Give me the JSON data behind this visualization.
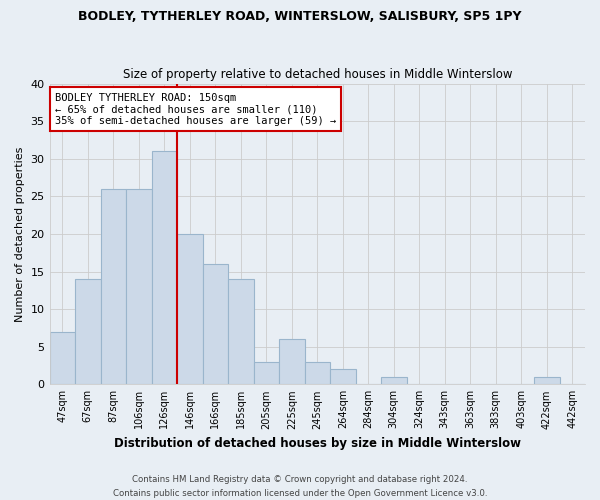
{
  "title": "BODLEY, TYTHERLEY ROAD, WINTERSLOW, SALISBURY, SP5 1PY",
  "subtitle": "Size of property relative to detached houses in Middle Winterslow",
  "xlabel": "Distribution of detached houses by size in Middle Winterslow",
  "ylabel": "Number of detached properties",
  "bin_labels": [
    "47sqm",
    "67sqm",
    "87sqm",
    "106sqm",
    "126sqm",
    "146sqm",
    "166sqm",
    "185sqm",
    "205sqm",
    "225sqm",
    "245sqm",
    "264sqm",
    "284sqm",
    "304sqm",
    "324sqm",
    "343sqm",
    "363sqm",
    "383sqm",
    "403sqm",
    "422sqm",
    "442sqm"
  ],
  "bar_heights": [
    7,
    14,
    26,
    26,
    31,
    20,
    16,
    14,
    3,
    6,
    3,
    2,
    0,
    1,
    0,
    0,
    0,
    0,
    0,
    1,
    0
  ],
  "bar_color": "#ccd9e8",
  "bar_edge_color": "#9ab5cc",
  "vline_position": 5.0,
  "vline_color": "#cc0000",
  "annotation_title": "BODLEY TYTHERLEY ROAD: 150sqm",
  "annotation_line1": "← 65% of detached houses are smaller (110)",
  "annotation_line2": "35% of semi-detached houses are larger (59) →",
  "annotation_box_facecolor": "#ffffff",
  "annotation_box_edgecolor": "#cc0000",
  "ylim": [
    0,
    40
  ],
  "yticks": [
    0,
    5,
    10,
    15,
    20,
    25,
    30,
    35,
    40
  ],
  "grid_color": "#cccccc",
  "background_color": "#e8eef4",
  "footer1": "Contains HM Land Registry data © Crown copyright and database right 2024.",
  "footer2": "Contains public sector information licensed under the Open Government Licence v3.0."
}
